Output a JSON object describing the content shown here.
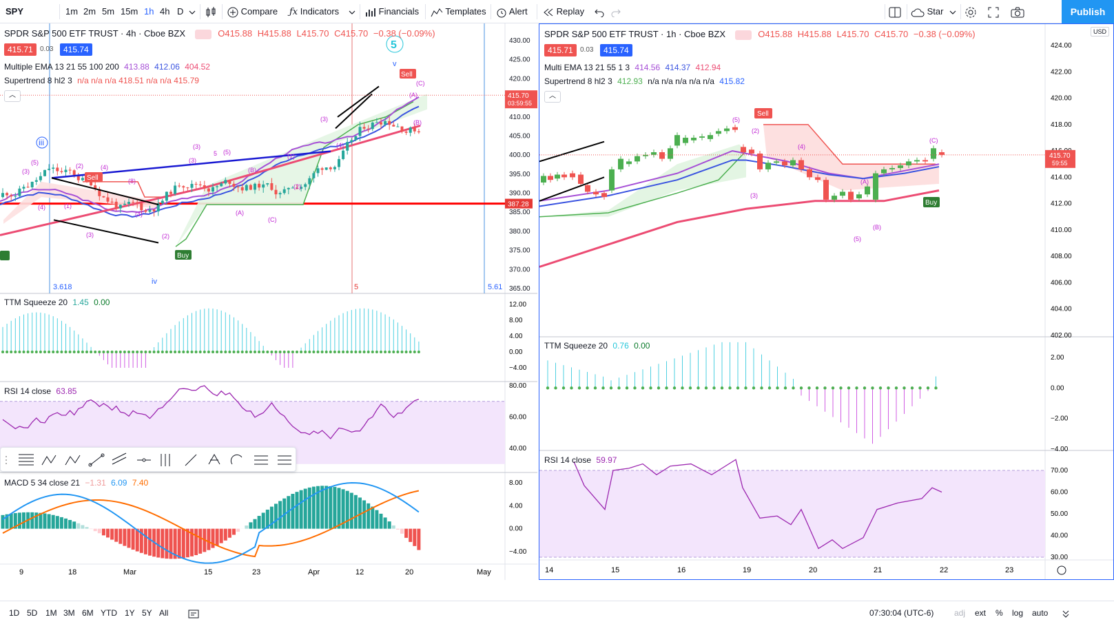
{
  "toolbar": {
    "symbol": "SPY",
    "intervals": [
      "1m",
      "2m",
      "5m",
      "15m",
      "1h",
      "4h",
      "D"
    ],
    "active_interval": "1h",
    "compare": "Compare",
    "indicators": "Indicators",
    "financials": "Financials",
    "templates": "Templates",
    "alert": "Alert",
    "replay": "Replay",
    "star": "Star",
    "publish": "Publish",
    "accent": "#2962ff",
    "publish_color": "#2196f3"
  },
  "left_chart": {
    "title": "SPDR S&P 500 ETF TRUST · 4h · Cboe BZX",
    "ohlc": {
      "o": "O415.88",
      "h": "H415.88",
      "l": "L415.70",
      "c": "C415.70",
      "chg": "−0.38 (−0.09%)"
    },
    "bid": "415.71",
    "spread": "0.03",
    "ask": "415.74",
    "ema_label": "Multiple EMA 13 21 55 100 200",
    "ema_values": [
      "413.88",
      "412.06",
      "404.52"
    ],
    "supertrend_label": "Supertrend 8 hl2 3",
    "supertrend_values": "n/a n/a n/a 418.51 n/a n/a 415.79",
    "price_axis": [
      "430.00",
      "425.00",
      "420.00",
      "415.00",
      "410.00",
      "405.00",
      "400.00",
      "395.00",
      "390.00",
      "385.00",
      "380.00",
      "375.00",
      "370.00",
      "365.00"
    ],
    "current_price": "415.70",
    "countdown": "03:59:55",
    "hline_price": "387.28",
    "fib_left": "3.618",
    "fib_mid": "5",
    "fib_right": "5.61",
    "wave_labels": [
      "5",
      "iii",
      "iv",
      "v"
    ],
    "sell_tag": "Sell",
    "buy_tag": "Buy",
    "ttm_label": "TTM Squeeze 20",
    "ttm_values": [
      "1.45",
      "0.00"
    ],
    "ttm_axis": [
      "12.00",
      "8.00",
      "4.00",
      "0.00",
      "−4.00"
    ],
    "rsi_label": "RSI 14 close",
    "rsi_value": "63.85",
    "rsi_axis": [
      "80.00",
      "60.00",
      "40.00"
    ],
    "macd_label": "MACD 5 34 close 21",
    "macd_values": [
      "−1.31",
      "6.09",
      "7.40"
    ],
    "macd_axis": [
      "8.00",
      "4.00",
      "0.00",
      "−4.00"
    ],
    "time_axis": [
      "9",
      "18",
      "Mar",
      "15",
      "23",
      "Apr",
      "12",
      "20",
      "May"
    ]
  },
  "right_chart": {
    "title": "SPDR S&P 500 ETF TRUST · 1h · Cboe BZX",
    "ohlc": {
      "o": "O415.88",
      "h": "H415.88",
      "l": "L415.70",
      "c": "C415.70",
      "chg": "−0.38 (−0.09%)"
    },
    "bid": "415.71",
    "spread": "0.03",
    "ask": "415.74",
    "ema_label": "Multi EMA 13 21 55 1 3",
    "ema_values": [
      "414.56",
      "414.37",
      "412.94"
    ],
    "supertrend_label": "Supertrend 8 hl2 3",
    "supertrend_values": [
      "412.93",
      "n/a n/a n/a n/a n/a",
      "415.82"
    ],
    "currency": "USD",
    "price_axis": [
      "424.00",
      "422.00",
      "420.00",
      "418.00",
      "416.00",
      "414.00",
      "412.00",
      "410.00",
      "408.00",
      "406.00",
      "404.00",
      "402.00"
    ],
    "current_price": "415.70",
    "countdown": "59:55",
    "sell_tag": "Sell",
    "buy_tag": "Buy",
    "ttm_label": "TTM Squeeze 20",
    "ttm_values": [
      "0.76",
      "0.00"
    ],
    "ttm_axis": [
      "2.00",
      "0.00",
      "−2.00",
      "−4.00"
    ],
    "rsi_label": "RSI 14 close",
    "rsi_value": "59.97",
    "rsi_axis": [
      "70.00",
      "60.00",
      "50.00",
      "40.00",
      "30.00"
    ],
    "time_axis": [
      "14",
      "15",
      "16",
      "19",
      "20",
      "21",
      "22",
      "23"
    ]
  },
  "bottom_bar": {
    "ranges": [
      "1D",
      "5D",
      "1M",
      "3M",
      "6M",
      "YTD",
      "1Y",
      "5Y",
      "All"
    ],
    "clock": "07:30:04 (UTC-6)",
    "adj": "adj",
    "ext": "ext",
    "pct": "%",
    "log": "log",
    "auto": "auto"
  },
  "colors": {
    "up": "#26a69a",
    "down": "#ef5350",
    "ema1": "#a64fd6",
    "ema2": "#3b54e0",
    "ema3": "#ec4c73",
    "hline": "#ff0000",
    "rsi_band": "#f3e5fc",
    "macd": "#2196f3",
    "signal": "#ff6d00"
  }
}
